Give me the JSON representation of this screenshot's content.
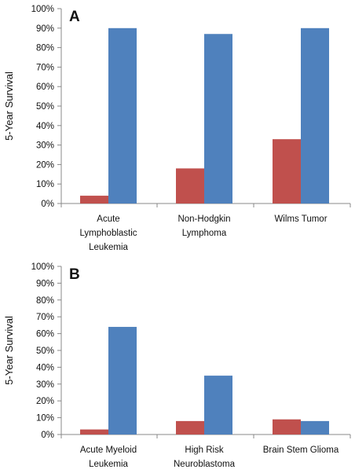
{
  "chart_data": [
    {
      "type": "bar",
      "panel_label": "A",
      "categories": [
        [
          "Acute",
          "Lymphoblastic",
          "Leukemia"
        ],
        [
          "Non-Hodgkin",
          "Lymphoma"
        ],
        [
          "Wilms Tumor"
        ]
      ],
      "series": [
        {
          "values": [
            4,
            18,
            33
          ],
          "color": "#c0504d"
        },
        {
          "values": [
            90,
            87,
            90
          ],
          "color": "#4f81bd"
        }
      ],
      "ylabel": "5-Year Survival",
      "ylim": [
        0,
        100
      ],
      "yticks": [
        0,
        10,
        20,
        30,
        40,
        50,
        60,
        70,
        80,
        90,
        100
      ],
      "ytick_labels": [
        "0%",
        "10%",
        "20%",
        "30%",
        "40%",
        "50%",
        "60%",
        "70%",
        "80%",
        "90%",
        "100%"
      ],
      "grid": false
    },
    {
      "type": "bar",
      "panel_label": "B",
      "categories": [
        [
          "Acute Myeloid",
          "Leukemia"
        ],
        [
          "High Risk",
          "Neuroblastoma"
        ],
        [
          "Brain Stem Glioma"
        ]
      ],
      "series": [
        {
          "values": [
            3,
            8,
            9
          ],
          "color": "#c0504d"
        },
        {
          "values": [
            64,
            35,
            8
          ],
          "color": "#4f81bd"
        }
      ],
      "ylabel": "5-Year Survival",
      "ylim": [
        0,
        100
      ],
      "yticks": [
        0,
        10,
        20,
        30,
        40,
        50,
        60,
        70,
        80,
        90,
        100
      ],
      "ytick_labels": [
        "0%",
        "10%",
        "20%",
        "30%",
        "40%",
        "50%",
        "60%",
        "70%",
        "80%",
        "90%",
        "100%"
      ],
      "grid": false
    }
  ]
}
